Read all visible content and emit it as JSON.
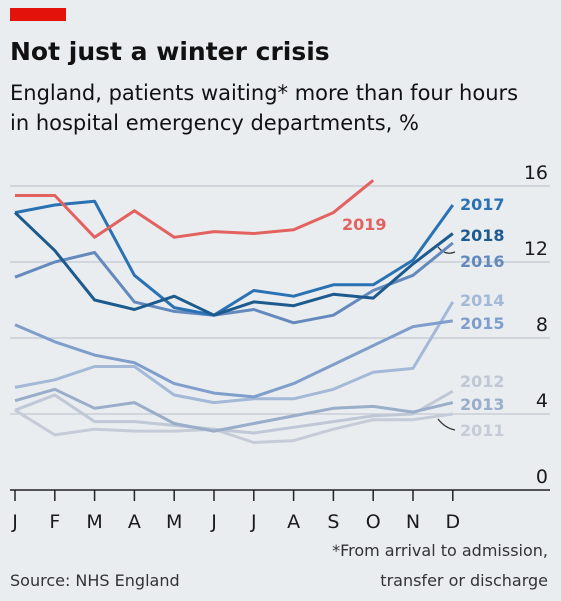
{
  "chart_data": {
    "type": "line",
    "title": "Not just a winter crisis",
    "subtitle": [
      "England, patients waiting* more than four hours",
      "in hospital emergency departments, %"
    ],
    "categories": [
      "J",
      "F",
      "M",
      "A",
      "M",
      "J",
      "J",
      "A",
      "S",
      "O",
      "N",
      "D"
    ],
    "series": [
      {
        "name": "2011",
        "color": "#c6ccd7",
        "values": [
          4.2,
          2.9,
          3.2,
          3.1,
          3.1,
          3.2,
          2.5,
          2.6,
          3.2,
          3.7,
          3.7,
          4.0
        ]
      },
      {
        "name": "2012",
        "color": "#c0c8d6",
        "values": [
          4.2,
          5.0,
          3.6,
          3.6,
          3.4,
          3.2,
          3.0,
          3.3,
          3.6,
          3.9,
          4.0,
          5.2
        ]
      },
      {
        "name": "2013",
        "color": "#9aadc9",
        "values": [
          4.7,
          5.3,
          4.3,
          4.6,
          3.5,
          3.1,
          3.5,
          3.9,
          4.3,
          4.4,
          4.1,
          4.6
        ]
      },
      {
        "name": "2014",
        "color": "#a4b8d8",
        "values": [
          5.4,
          5.8,
          6.5,
          6.5,
          5.0,
          4.6,
          4.8,
          4.8,
          5.3,
          6.2,
          6.4,
          9.9
        ]
      },
      {
        "name": "2015",
        "color": "#7f9ecb",
        "values": [
          8.7,
          7.8,
          7.1,
          6.7,
          5.6,
          5.1,
          4.9,
          5.6,
          6.6,
          7.6,
          8.6,
          8.9
        ]
      },
      {
        "name": "2016",
        "color": "#6489bd",
        "values": [
          11.2,
          12.0,
          12.5,
          9.9,
          9.4,
          9.2,
          9.5,
          8.8,
          9.2,
          10.5,
          11.3,
          13.0
        ]
      },
      {
        "name": "2017",
        "color": "#2a72b3",
        "values": [
          14.6,
          15.0,
          15.2,
          11.3,
          9.6,
          9.2,
          10.5,
          10.2,
          10.8,
          10.8,
          12.1,
          15.0
        ]
      },
      {
        "name": "2018",
        "color": "#1d5b8f",
        "values": [
          14.6,
          12.6,
          10.0,
          9.5,
          10.2,
          9.2,
          9.9,
          9.7,
          10.3,
          10.1,
          11.9,
          13.5
        ]
      },
      {
        "name": "2019",
        "color": "#e3625f",
        "values": [
          15.5,
          15.5,
          13.3,
          14.7,
          13.3,
          13.6,
          13.5,
          13.7,
          14.6,
          16.3,
          null,
          null
        ]
      }
    ],
    "ylim": [
      0,
      16
    ],
    "yticks": [
      0,
      4,
      8,
      12,
      16
    ],
    "grid": true,
    "footnote": [
      "*From arrival to admission,",
      "transfer or discharge"
    ],
    "source": "Source: NHS England"
  }
}
